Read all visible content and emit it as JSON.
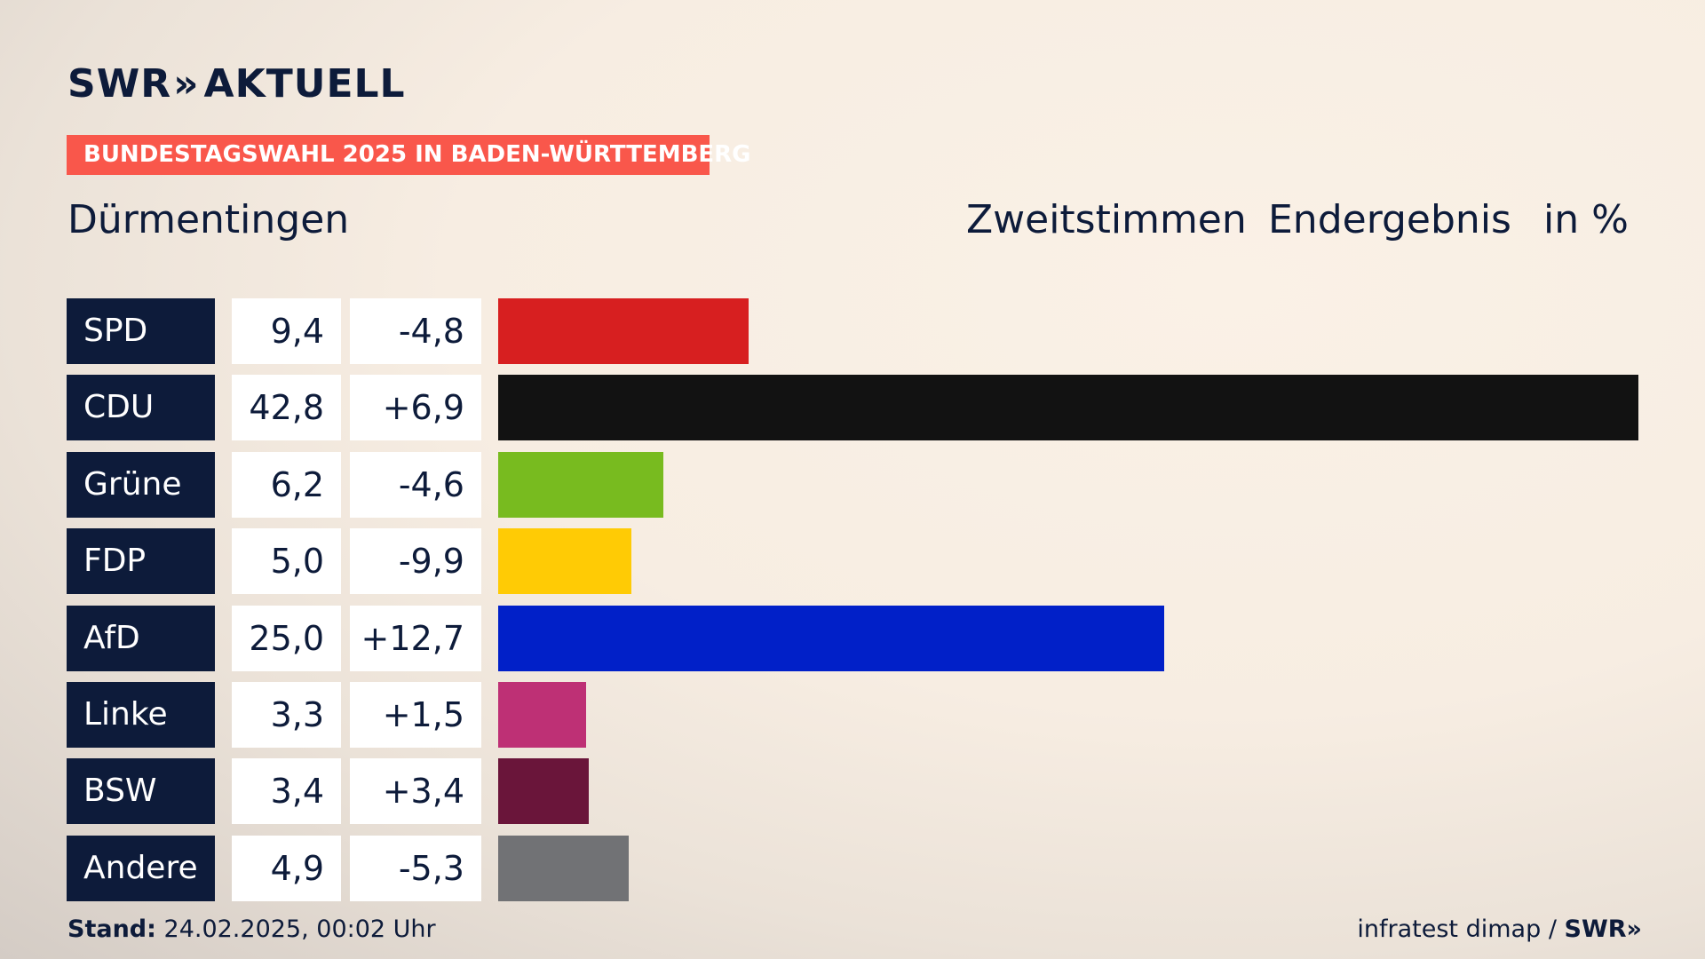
{
  "brand": {
    "name": "SWR",
    "arrows": "»",
    "product": "AKTUELL"
  },
  "banner": "BUNDESTAGSWAHL 2025 IN BADEN-WÜRTTEMBERG",
  "location": "Dürmentingen",
  "header": {
    "vote_type": "Zweitstimmen",
    "status": "Endergebnis",
    "unit": "in %"
  },
  "chart_data": {
    "type": "bar",
    "orientation": "horizontal",
    "categories": [
      "SPD",
      "CDU",
      "Grüne",
      "FDP",
      "AfD",
      "Linke",
      "BSW",
      "Andere"
    ],
    "values": [
      9.4,
      42.8,
      6.2,
      5.0,
      25.0,
      3.3,
      3.4,
      4.9
    ],
    "value_labels": [
      "9,4",
      "42,8",
      "6,2",
      "5,0",
      "25,0",
      "3,3",
      "3,4",
      "4,9"
    ],
    "changes": [
      -4.8,
      6.9,
      -4.6,
      -9.9,
      12.7,
      1.5,
      3.4,
      -5.3
    ],
    "change_labels": [
      "-4,8",
      "+6,9",
      "-4,6",
      "-9,9",
      "+12,7",
      "+1,5",
      "+3,4",
      "-5,3"
    ],
    "colors": [
      "#d71f20",
      "#121212",
      "#78bb1f",
      "#ffcb05",
      "#0120c8",
      "#be3075",
      "#6a153a",
      "#717275"
    ],
    "xlim": [
      0,
      42.8
    ]
  },
  "footer": {
    "stand_label": "Stand:",
    "stand_value": "24.02.2025, 00:02 Uhr",
    "source": "infratest dimap /",
    "source_brand": "SWR",
    "source_arrows": "»"
  }
}
